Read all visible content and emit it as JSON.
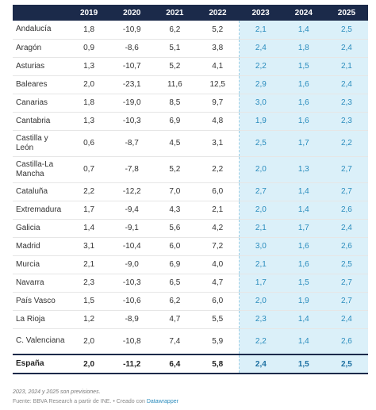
{
  "chart_data": {
    "type": "table",
    "columns": [
      "",
      "2019",
      "2020",
      "2021",
      "2022",
      "2023",
      "2024",
      "2025"
    ],
    "rows": [
      {
        "region": "Andalucía",
        "values": [
          "1,8",
          "-10,9",
          "6,2",
          "5,2",
          "2,1",
          "1,4",
          "2,5"
        ]
      },
      {
        "region": "Aragón",
        "values": [
          "0,9",
          "-8,6",
          "5,1",
          "3,8",
          "2,4",
          "1,8",
          "2,4"
        ]
      },
      {
        "region": "Asturias",
        "values": [
          "1,3",
          "-10,7",
          "5,2",
          "4,1",
          "2,2",
          "1,5",
          "2,1"
        ]
      },
      {
        "region": "Baleares",
        "values": [
          "2,0",
          "-23,1",
          "11,6",
          "12,5",
          "2,9",
          "1,6",
          "2,4"
        ]
      },
      {
        "region": "Canarias",
        "values": [
          "1,8",
          "-19,0",
          "8,5",
          "9,7",
          "3,0",
          "1,6",
          "2,3"
        ]
      },
      {
        "region": "Cantabria",
        "values": [
          "1,3",
          "-10,3",
          "6,9",
          "4,8",
          "1,9",
          "1,6",
          "2,3"
        ]
      },
      {
        "region": "Castilla y León",
        "values": [
          "0,6",
          "-8,7",
          "4,5",
          "3,1",
          "2,5",
          "1,7",
          "2,2"
        ]
      },
      {
        "region": "Castilla-La Mancha",
        "values": [
          "0,7",
          "-7,8",
          "5,2",
          "2,2",
          "2,0",
          "1,3",
          "2,7"
        ]
      },
      {
        "region": "Cataluña",
        "values": [
          "2,2",
          "-12,2",
          "7,0",
          "6,0",
          "2,7",
          "1,4",
          "2,7"
        ]
      },
      {
        "region": "Extremadura",
        "values": [
          "1,7",
          "-9,4",
          "4,3",
          "2,1",
          "2,0",
          "1,4",
          "2,6"
        ]
      },
      {
        "region": "Galicia",
        "values": [
          "1,4",
          "-9,1",
          "5,6",
          "4,2",
          "2,1",
          "1,7",
          "2,4"
        ]
      },
      {
        "region": "Madrid",
        "values": [
          "3,1",
          "-10,4",
          "6,0",
          "7,2",
          "3,0",
          "1,6",
          "2,6"
        ]
      },
      {
        "region": "Murcia",
        "values": [
          "2,1",
          "-9,0",
          "6,9",
          "4,0",
          "2,1",
          "1,6",
          "2,5"
        ]
      },
      {
        "region": "Navarra",
        "values": [
          "2,3",
          "-10,3",
          "6,5",
          "4,7",
          "1,7",
          "1,5",
          "2,7"
        ]
      },
      {
        "region": "País Vasco",
        "values": [
          "1,5",
          "-10,6",
          "6,2",
          "6,0",
          "2,0",
          "1,9",
          "2,7"
        ]
      },
      {
        "region": "La Rioja",
        "values": [
          "1,2",
          "-8,9",
          "4,7",
          "5,5",
          "2,3",
          "1,4",
          "2,4"
        ]
      },
      {
        "region": "C. Valenciana",
        "values": [
          "2,0",
          "-10,8",
          "7,4",
          "5,9",
          "2,2",
          "1,4",
          "2,6"
        ]
      }
    ],
    "total": {
      "region": "España",
      "values": [
        "2,0",
        "-11,2",
        "6,4",
        "5,8",
        "2,4",
        "1,5",
        "2,5"
      ]
    },
    "forecast_columns": [
      "2023",
      "2024",
      "2025"
    ]
  },
  "footer": {
    "note": "2023, 2024 y 2025 son previsiones.",
    "source_prefix": "Fuente: BBVA Research a partir de INE. • Creado con ",
    "source_link": "Datawrapper"
  },
  "colors": {
    "header_bg": "#1b2a4a",
    "forecast_bg": "#dbf0f9",
    "forecast_text": "#2a8cbd"
  }
}
